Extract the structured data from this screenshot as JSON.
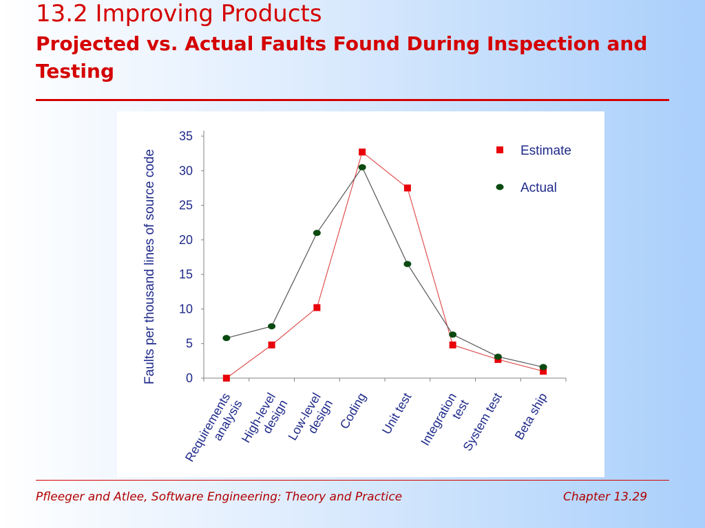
{
  "slide": {
    "title": "13.2 Improving Products",
    "subtitle": "Projected vs. Actual Faults Found During Inspection and Testing",
    "footer_left": "Pfleeger and Atlee, Software Engineering: Theory and Practice",
    "footer_right": "Chapter 13.29",
    "title_color": "#d40000"
  },
  "chart_data": {
    "type": "line",
    "title": "",
    "xlabel": "",
    "ylabel": "Faults per thousand lines of source code",
    "ylim": [
      0,
      35
    ],
    "yticks": [
      "0",
      "5",
      "10",
      "15",
      "20",
      "25",
      "30",
      "35"
    ],
    "categories": [
      [
        "Requirements",
        "analysis"
      ],
      [
        "High-level",
        "design"
      ],
      [
        "Low-level",
        "design"
      ],
      [
        "Coding"
      ],
      [
        "Unit test"
      ],
      [
        "Integration",
        "test"
      ],
      [
        "System test"
      ],
      [
        "Beta ship"
      ]
    ],
    "series": [
      {
        "name": "Estimate",
        "marker": "square",
        "color": "#e8000a",
        "line_color": "#e05050",
        "values": [
          0,
          4.8,
          10.2,
          32.7,
          27.5,
          4.8,
          2.7,
          1
        ]
      },
      {
        "name": "Actual",
        "marker": "circle",
        "color": "#0a4a10",
        "line_color": "#555555",
        "values": [
          5.8,
          7.5,
          21,
          30.5,
          16.5,
          6.3,
          3.1,
          1.6
        ]
      }
    ],
    "legend_position": "top-right",
    "grid": false
  }
}
